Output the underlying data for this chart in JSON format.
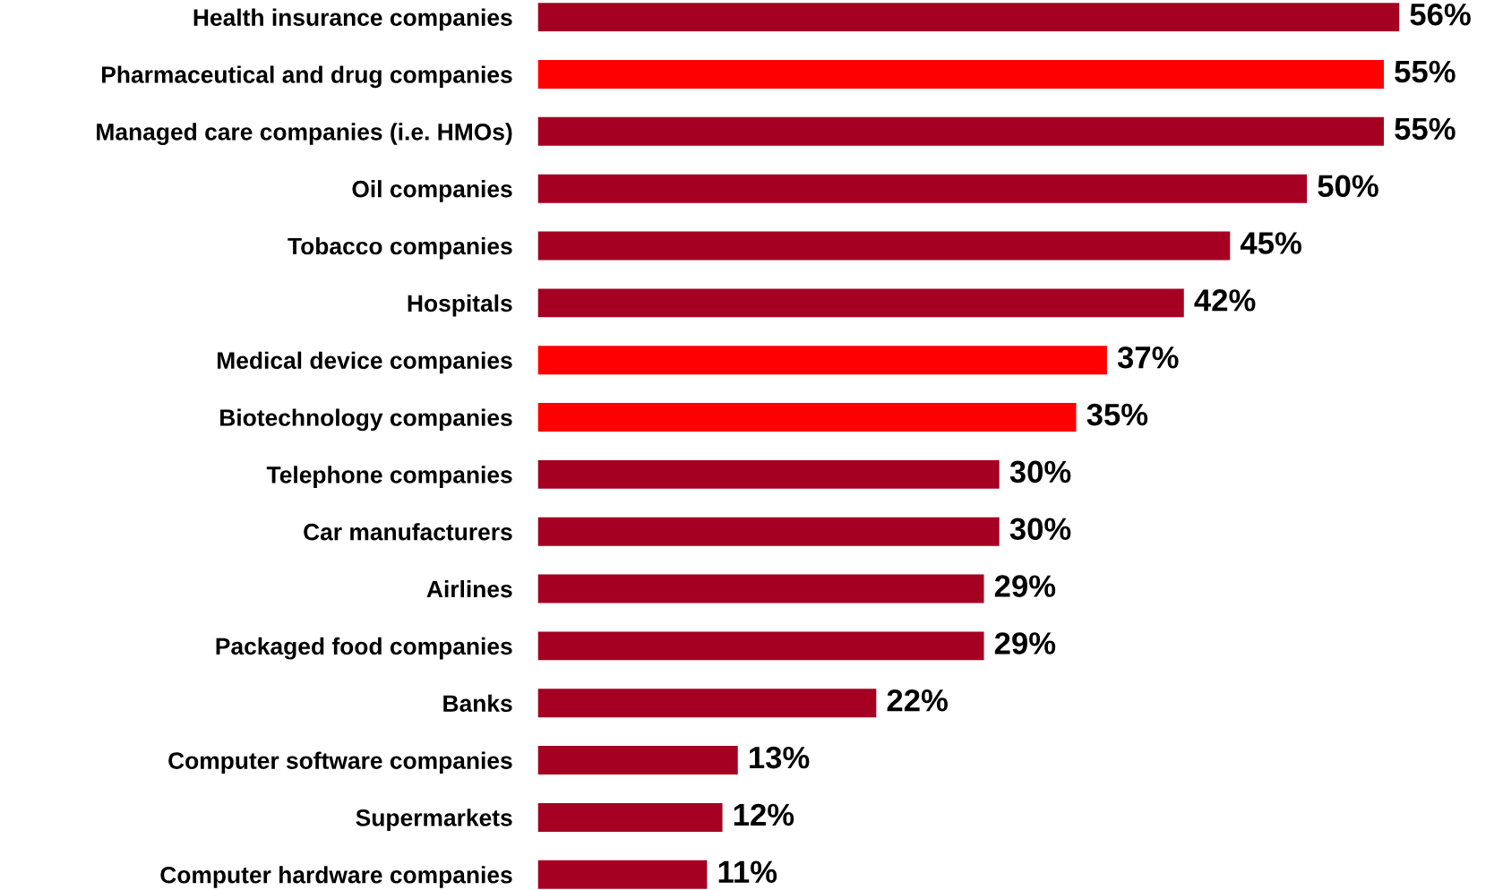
{
  "chart_data": {
    "type": "bar",
    "orientation": "horizontal",
    "categories": [
      "Health insurance companies",
      "Pharmaceutical and drug companies",
      "Managed care companies (i.e. HMOs)",
      "Oil companies",
      "Tobacco companies",
      "Hospitals",
      "Medical device companies",
      "Biotechnology companies",
      "Telephone companies",
      "Car manufacturers",
      "Airlines",
      "Packaged food companies",
      "Banks",
      "Computer software companies",
      "Supermarkets",
      "Computer hardware companies"
    ],
    "values": [
      56,
      55,
      55,
      50,
      45,
      42,
      37,
      35,
      30,
      30,
      29,
      29,
      22,
      13,
      12,
      11
    ],
    "value_labels": [
      "56%",
      "55%",
      "55%",
      "50%",
      "45%",
      "42%",
      "37%",
      "35%",
      "30%",
      "30%",
      "29%",
      "29%",
      "22%",
      "13%",
      "12%",
      "11%"
    ],
    "colors": [
      "#a50021",
      "#ff0000",
      "#a50021",
      "#a50021",
      "#a50021",
      "#a50021",
      "#ff0000",
      "#ff0000",
      "#a50021",
      "#a50021",
      "#a50021",
      "#a50021",
      "#a50021",
      "#a50021",
      "#a50021",
      "#a50021"
    ],
    "tick_labels": "y",
    "grid": false,
    "legend": false
  }
}
